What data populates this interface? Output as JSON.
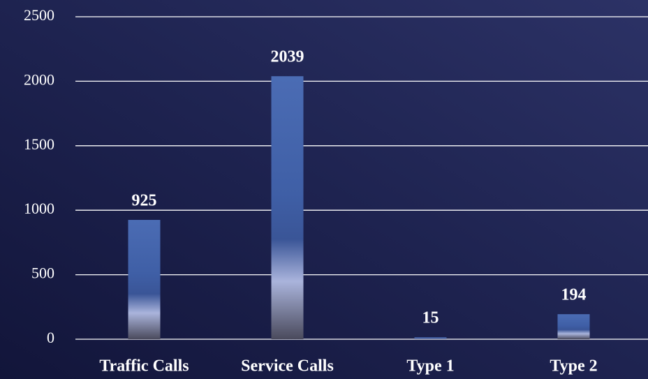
{
  "chart_data": {
    "type": "bar",
    "categories": [
      "Traffic Calls",
      "Service Calls",
      "Type 1",
      "Type 2"
    ],
    "values": [
      925,
      2039,
      15,
      194
    ],
    "color": "#4a6ab0",
    "ylim": [
      0,
      2500
    ],
    "yticks": [
      0,
      500,
      1000,
      1500,
      2000,
      2500
    ],
    "grid": true
  }
}
